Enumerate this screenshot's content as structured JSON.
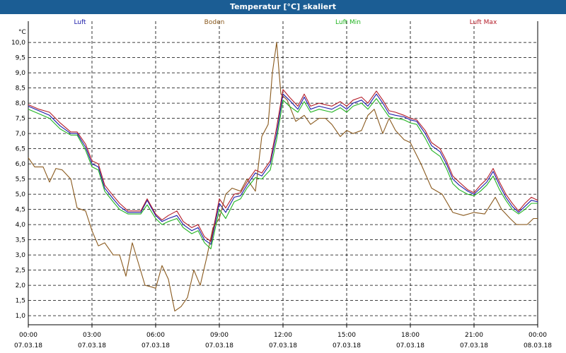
{
  "window": {
    "title": "Temperatur [°C] skaliert"
  },
  "chart_data": {
    "type": "line",
    "title": "Temperatur [°C] skaliert",
    "ylabel": "°C",
    "xlabel": "",
    "ylim": [
      0.7,
      10.7
    ],
    "yticks": [
      1.0,
      1.5,
      2.0,
      2.5,
      3.0,
      3.5,
      4.0,
      4.5,
      5.0,
      5.5,
      6.0,
      6.5,
      7.0,
      7.5,
      8.0,
      8.5,
      9.0,
      9.5,
      10.0
    ],
    "ytick_labels": [
      "1,0",
      "1,5",
      "2,0",
      "2,5",
      "3,0",
      "3,5",
      "4,0",
      "4,5",
      "5,0",
      "5,5",
      "6,0",
      "6,5",
      "7,0",
      "7,5",
      "8,0",
      "8,5",
      "9,0",
      "9,5",
      "10,0"
    ],
    "xlim_hours": [
      0,
      24
    ],
    "xticks": [
      {
        "hour": 0,
        "time": "00:00",
        "date": "07.03.18"
      },
      {
        "hour": 3,
        "time": "03:00",
        "date": "07.03.18"
      },
      {
        "hour": 6,
        "time": "06:00",
        "date": "07.03.18"
      },
      {
        "hour": 9,
        "time": "09:00",
        "date": "07.03.18"
      },
      {
        "hour": 12,
        "time": "12:00",
        "date": "07.03.18"
      },
      {
        "hour": 15,
        "time": "15:00",
        "date": "07.03.18"
      },
      {
        "hour": 18,
        "time": "18:00",
        "date": "07.03.18"
      },
      {
        "hour": 21,
        "time": "21:00",
        "date": "07.03.18"
      },
      {
        "hour": 24,
        "time": "00:00",
        "date": "08.03.18"
      }
    ],
    "grid": true,
    "legend_position": "top",
    "colors": {
      "grid": "#000000",
      "axis": "#000000",
      "text": "#000000"
    },
    "series": [
      {
        "name": "Luft",
        "color": "#1a1aa8",
        "points": [
          [
            0,
            7.9
          ],
          [
            0.5,
            7.75
          ],
          [
            1,
            7.6
          ],
          [
            1.5,
            7.25
          ],
          [
            2,
            7.0
          ],
          [
            2.3,
            7.0
          ],
          [
            2.7,
            6.55
          ],
          [
            3,
            6.0
          ],
          [
            3.3,
            5.9
          ],
          [
            3.6,
            5.2
          ],
          [
            4,
            4.85
          ],
          [
            4.3,
            4.6
          ],
          [
            4.7,
            4.4
          ],
          [
            5,
            4.4
          ],
          [
            5.3,
            4.4
          ],
          [
            5.6,
            4.8
          ],
          [
            6,
            4.3
          ],
          [
            6.3,
            4.1
          ],
          [
            6.6,
            4.2
          ],
          [
            7,
            4.3
          ],
          [
            7.3,
            4.0
          ],
          [
            7.7,
            3.8
          ],
          [
            8,
            3.9
          ],
          [
            8.3,
            3.5
          ],
          [
            8.6,
            3.35
          ],
          [
            9,
            4.7
          ],
          [
            9.3,
            4.4
          ],
          [
            9.7,
            4.9
          ],
          [
            10,
            4.95
          ],
          [
            10.3,
            5.3
          ],
          [
            10.7,
            5.7
          ],
          [
            11,
            5.6
          ],
          [
            11.4,
            6.0
          ],
          [
            11.7,
            7.0
          ],
          [
            12,
            8.3
          ],
          [
            12.3,
            8.1
          ],
          [
            12.7,
            7.8
          ],
          [
            13,
            8.2
          ],
          [
            13.3,
            7.8
          ],
          [
            13.7,
            7.9
          ],
          [
            14,
            7.85
          ],
          [
            14.3,
            7.8
          ],
          [
            14.7,
            7.95
          ],
          [
            15,
            7.8
          ],
          [
            15.3,
            8.0
          ],
          [
            15.7,
            8.1
          ],
          [
            16,
            7.9
          ],
          [
            16.4,
            8.3
          ],
          [
            16.7,
            8.0
          ],
          [
            17,
            7.65
          ],
          [
            17.3,
            7.6
          ],
          [
            17.7,
            7.55
          ],
          [
            18,
            7.45
          ],
          [
            18.3,
            7.4
          ],
          [
            18.7,
            7.0
          ],
          [
            19,
            6.6
          ],
          [
            19.4,
            6.4
          ],
          [
            19.7,
            6.0
          ],
          [
            20,
            5.5
          ],
          [
            20.3,
            5.3
          ],
          [
            20.7,
            5.1
          ],
          [
            21,
            5.0
          ],
          [
            21.3,
            5.2
          ],
          [
            21.6,
            5.4
          ],
          [
            21.9,
            5.75
          ],
          [
            22.2,
            5.3
          ],
          [
            22.5,
            4.9
          ],
          [
            22.8,
            4.6
          ],
          [
            23.1,
            4.4
          ],
          [
            23.4,
            4.6
          ],
          [
            23.7,
            4.8
          ],
          [
            24,
            4.75
          ]
        ]
      },
      {
        "name": "Boden",
        "color": "#8a5a1e",
        "points": [
          [
            0,
            6.2
          ],
          [
            0.3,
            5.9
          ],
          [
            0.7,
            5.9
          ],
          [
            1,
            5.4
          ],
          [
            1.3,
            5.85
          ],
          [
            1.6,
            5.8
          ],
          [
            2,
            5.5
          ],
          [
            2.3,
            4.55
          ],
          [
            2.7,
            4.45
          ],
          [
            3,
            3.8
          ],
          [
            3.3,
            3.3
          ],
          [
            3.6,
            3.4
          ],
          [
            4,
            3.0
          ],
          [
            4.3,
            3.0
          ],
          [
            4.6,
            2.3
          ],
          [
            4.9,
            3.4
          ],
          [
            5.2,
            2.7
          ],
          [
            5.5,
            2.0
          ],
          [
            5.8,
            1.95
          ],
          [
            6,
            1.9
          ],
          [
            6.3,
            2.65
          ],
          [
            6.6,
            2.2
          ],
          [
            6.9,
            1.15
          ],
          [
            7.2,
            1.3
          ],
          [
            7.5,
            1.6
          ],
          [
            7.8,
            2.5
          ],
          [
            8.1,
            2.0
          ],
          [
            8.4,
            2.9
          ],
          [
            8.7,
            3.9
          ],
          [
            9,
            4.2
          ],
          [
            9.3,
            5.0
          ],
          [
            9.6,
            5.2
          ],
          [
            10,
            5.1
          ],
          [
            10.3,
            5.5
          ],
          [
            10.7,
            5.1
          ],
          [
            11,
            6.9
          ],
          [
            11.3,
            7.3
          ],
          [
            11.5,
            9.0
          ],
          [
            11.7,
            10.0
          ],
          [
            11.9,
            8.3
          ],
          [
            12.2,
            8.1
          ],
          [
            12.6,
            7.4
          ],
          [
            13,
            7.6
          ],
          [
            13.3,
            7.3
          ],
          [
            13.7,
            7.5
          ],
          [
            14,
            7.5
          ],
          [
            14.3,
            7.3
          ],
          [
            14.7,
            6.9
          ],
          [
            15,
            7.1
          ],
          [
            15.3,
            7.0
          ],
          [
            15.7,
            7.1
          ],
          [
            16,
            7.6
          ],
          [
            16.3,
            7.8
          ],
          [
            16.7,
            7.0
          ],
          [
            17,
            7.5
          ],
          [
            17.3,
            7.1
          ],
          [
            17.7,
            6.8
          ],
          [
            18,
            6.7
          ],
          [
            18.5,
            6.0
          ],
          [
            19,
            5.2
          ],
          [
            19.5,
            5.0
          ],
          [
            20,
            4.4
          ],
          [
            20.5,
            4.3
          ],
          [
            21,
            4.4
          ],
          [
            21.5,
            4.35
          ],
          [
            22,
            4.9
          ],
          [
            22.3,
            4.5
          ],
          [
            22.7,
            4.2
          ],
          [
            23,
            4.0
          ],
          [
            23.5,
            4.0
          ],
          [
            23.8,
            4.2
          ],
          [
            24,
            4.2
          ]
        ]
      },
      {
        "name": "Luft Min",
        "color": "#22b422",
        "points": [
          [
            0,
            7.8
          ],
          [
            0.5,
            7.65
          ],
          [
            1,
            7.5
          ],
          [
            1.5,
            7.15
          ],
          [
            2,
            6.95
          ],
          [
            2.3,
            6.95
          ],
          [
            2.7,
            6.45
          ],
          [
            3,
            5.9
          ],
          [
            3.3,
            5.8
          ],
          [
            3.6,
            5.1
          ],
          [
            4,
            4.75
          ],
          [
            4.3,
            4.5
          ],
          [
            4.7,
            4.35
          ],
          [
            5,
            4.35
          ],
          [
            5.3,
            4.35
          ],
          [
            5.6,
            4.65
          ],
          [
            6,
            4.2
          ],
          [
            6.3,
            4.0
          ],
          [
            6.6,
            4.1
          ],
          [
            7,
            4.2
          ],
          [
            7.3,
            3.9
          ],
          [
            7.7,
            3.7
          ],
          [
            8,
            3.8
          ],
          [
            8.3,
            3.4
          ],
          [
            8.6,
            3.2
          ],
          [
            9,
            4.5
          ],
          [
            9.3,
            4.2
          ],
          [
            9.7,
            4.75
          ],
          [
            10,
            4.85
          ],
          [
            10.3,
            5.2
          ],
          [
            10.7,
            5.55
          ],
          [
            11,
            5.5
          ],
          [
            11.4,
            5.8
          ],
          [
            11.7,
            6.8
          ],
          [
            12,
            8.1
          ],
          [
            12.3,
            7.9
          ],
          [
            12.7,
            7.7
          ],
          [
            13,
            8.05
          ],
          [
            13.3,
            7.7
          ],
          [
            13.7,
            7.8
          ],
          [
            14,
            7.75
          ],
          [
            14.3,
            7.7
          ],
          [
            14.7,
            7.85
          ],
          [
            15,
            7.7
          ],
          [
            15.3,
            7.9
          ],
          [
            15.7,
            8.0
          ],
          [
            16,
            7.8
          ],
          [
            16.4,
            8.15
          ],
          [
            16.7,
            7.85
          ],
          [
            17,
            7.55
          ],
          [
            17.3,
            7.5
          ],
          [
            17.7,
            7.45
          ],
          [
            18,
            7.35
          ],
          [
            18.3,
            7.3
          ],
          [
            18.7,
            6.85
          ],
          [
            19,
            6.45
          ],
          [
            19.4,
            6.25
          ],
          [
            19.7,
            5.85
          ],
          [
            20,
            5.35
          ],
          [
            20.3,
            5.15
          ],
          [
            20.7,
            5.0
          ],
          [
            21,
            4.95
          ],
          [
            21.3,
            5.1
          ],
          [
            21.6,
            5.3
          ],
          [
            21.9,
            5.6
          ],
          [
            22.2,
            5.15
          ],
          [
            22.5,
            4.8
          ],
          [
            22.8,
            4.5
          ],
          [
            23.1,
            4.35
          ],
          [
            23.4,
            4.5
          ],
          [
            23.7,
            4.7
          ],
          [
            24,
            4.7
          ]
        ]
      },
      {
        "name": "Luft Max",
        "color": "#b41c28",
        "points": [
          [
            0,
            7.95
          ],
          [
            0.5,
            7.8
          ],
          [
            1,
            7.7
          ],
          [
            1.5,
            7.35
          ],
          [
            2,
            7.05
          ],
          [
            2.3,
            7.05
          ],
          [
            2.7,
            6.65
          ],
          [
            3,
            6.1
          ],
          [
            3.3,
            6.0
          ],
          [
            3.6,
            5.3
          ],
          [
            4,
            4.95
          ],
          [
            4.3,
            4.7
          ],
          [
            4.7,
            4.45
          ],
          [
            5,
            4.45
          ],
          [
            5.3,
            4.45
          ],
          [
            5.6,
            4.85
          ],
          [
            6,
            4.35
          ],
          [
            6.3,
            4.15
          ],
          [
            6.6,
            4.3
          ],
          [
            7,
            4.45
          ],
          [
            7.3,
            4.1
          ],
          [
            7.7,
            3.9
          ],
          [
            8,
            4.0
          ],
          [
            8.3,
            3.6
          ],
          [
            8.6,
            3.45
          ],
          [
            9,
            4.85
          ],
          [
            9.3,
            4.55
          ],
          [
            9.7,
            5.0
          ],
          [
            10,
            5.05
          ],
          [
            10.3,
            5.4
          ],
          [
            10.7,
            5.8
          ],
          [
            11,
            5.7
          ],
          [
            11.4,
            6.1
          ],
          [
            11.7,
            7.2
          ],
          [
            12,
            8.45
          ],
          [
            12.3,
            8.2
          ],
          [
            12.7,
            7.9
          ],
          [
            13,
            8.3
          ],
          [
            13.3,
            7.9
          ],
          [
            13.7,
            8.0
          ],
          [
            14,
            7.95
          ],
          [
            14.3,
            7.9
          ],
          [
            14.7,
            8.05
          ],
          [
            15,
            7.9
          ],
          [
            15.3,
            8.1
          ],
          [
            15.7,
            8.2
          ],
          [
            16,
            8.0
          ],
          [
            16.4,
            8.4
          ],
          [
            16.7,
            8.1
          ],
          [
            17,
            7.75
          ],
          [
            17.3,
            7.7
          ],
          [
            17.7,
            7.6
          ],
          [
            18,
            7.5
          ],
          [
            18.3,
            7.45
          ],
          [
            18.7,
            7.1
          ],
          [
            19,
            6.7
          ],
          [
            19.4,
            6.5
          ],
          [
            19.7,
            6.1
          ],
          [
            20,
            5.6
          ],
          [
            20.3,
            5.4
          ],
          [
            20.7,
            5.15
          ],
          [
            21,
            5.05
          ],
          [
            21.3,
            5.3
          ],
          [
            21.6,
            5.5
          ],
          [
            21.9,
            5.85
          ],
          [
            22.2,
            5.4
          ],
          [
            22.5,
            5.0
          ],
          [
            22.8,
            4.7
          ],
          [
            23.1,
            4.45
          ],
          [
            23.4,
            4.7
          ],
          [
            23.7,
            4.9
          ],
          [
            24,
            4.8
          ]
        ]
      }
    ]
  }
}
